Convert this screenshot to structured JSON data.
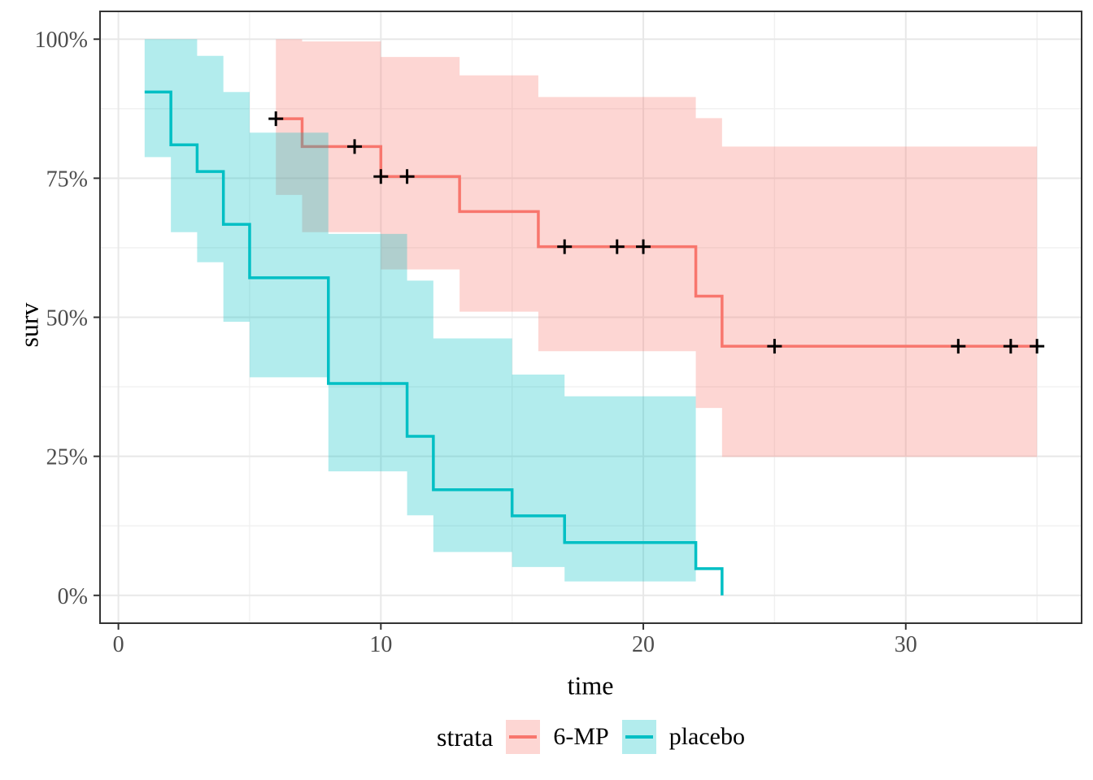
{
  "chart_data": {
    "type": "line",
    "subtype": "kaplan-meier-step-with-ci-ribbons",
    "title": "",
    "xlabel": "time",
    "ylabel": "surv",
    "xlim": [
      -0.7,
      36.7
    ],
    "ylim": [
      -0.05,
      1.05
    ],
    "grid": true,
    "x_ticks": {
      "major": [
        0,
        10,
        20,
        30
      ],
      "labels": [
        "0",
        "10",
        "20",
        "30"
      ],
      "minor": [
        5,
        15,
        25,
        35
      ]
    },
    "y_ticks": {
      "major": [
        0,
        0.25,
        0.5,
        0.75,
        1.0
      ],
      "labels": [
        "0%",
        "25%",
        "50%",
        "75%",
        "100%"
      ],
      "minor": [
        0.125,
        0.375,
        0.625,
        0.875
      ]
    },
    "legend": {
      "title": "strata",
      "position": "bottom"
    },
    "censor_marker": {
      "shape": "plus",
      "color": "#000000"
    },
    "series": [
      {
        "name": "6-MP",
        "color": "#F8766D",
        "fill_alpha": 0.3,
        "steps": [
          [
            6,
            0.857
          ],
          [
            7,
            0.807
          ],
          [
            10,
            0.753
          ],
          [
            13,
            0.69
          ],
          [
            16,
            0.627
          ],
          [
            22,
            0.538
          ],
          [
            23,
            0.448
          ]
        ],
        "end_time": 35,
        "censor_times": [
          6,
          9,
          10,
          11,
          17,
          19,
          20,
          25,
          32,
          34,
          35
        ],
        "ci": [
          [
            6,
            1.0,
            0.72
          ],
          [
            7,
            0.996,
            0.653
          ],
          [
            10,
            0.968,
            0.586
          ],
          [
            13,
            0.935,
            0.51
          ],
          [
            16,
            0.896,
            0.439
          ],
          [
            22,
            0.858,
            0.337
          ],
          [
            23,
            0.807,
            0.249
          ]
        ],
        "ci_end_time": 35
      },
      {
        "name": "placebo",
        "color": "#00BFC4",
        "fill_alpha": 0.3,
        "steps": [
          [
            1,
            0.905
          ],
          [
            2,
            0.81
          ],
          [
            3,
            0.762
          ],
          [
            4,
            0.667
          ],
          [
            5,
            0.571
          ],
          [
            8,
            0.381
          ],
          [
            11,
            0.286
          ],
          [
            12,
            0.19
          ],
          [
            15,
            0.143
          ],
          [
            17,
            0.095
          ],
          [
            22,
            0.048
          ],
          [
            23,
            0.0
          ]
        ],
        "end_time": 23,
        "censor_times": [],
        "ci": [
          [
            1,
            1.0,
            0.788
          ],
          [
            2,
            1.0,
            0.653
          ],
          [
            3,
            0.97,
            0.599
          ],
          [
            4,
            0.905,
            0.492
          ],
          [
            5,
            0.832,
            0.392
          ],
          [
            8,
            0.65,
            0.223
          ],
          [
            11,
            0.566,
            0.144
          ],
          [
            12,
            0.462,
            0.078
          ],
          [
            15,
            0.397,
            0.051
          ],
          [
            17,
            0.358,
            0.025
          ]
        ],
        "ci_end_time": 22
      }
    ],
    "style": {
      "panel_background": "#ffffff",
      "panel_border_color": "#333333",
      "grid_major_color": "#e8e8e8",
      "grid_minor_color": "#f0f0f0",
      "tick_color": "#333333",
      "tick_label_color": "#4d4d4d",
      "axis_title_color": "#000000"
    }
  }
}
